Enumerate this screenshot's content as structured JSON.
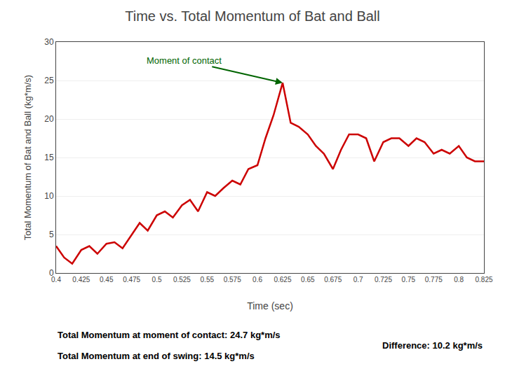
{
  "chart_data": {
    "type": "line",
    "title": "Time vs. Total Momentum of Bat and Ball",
    "xlabel": "Time (sec)",
    "ylabel": "Total Momentum of Bat and Ball (kg*m/s)",
    "x": [
      0.4,
      0.408,
      0.416,
      0.425,
      0.433,
      0.441,
      0.45,
      0.458,
      0.466,
      0.475,
      0.483,
      0.491,
      0.5,
      0.508,
      0.516,
      0.525,
      0.533,
      0.541,
      0.55,
      0.558,
      0.566,
      0.575,
      0.583,
      0.591,
      0.6,
      0.608,
      0.616,
      0.625,
      0.633,
      0.641,
      0.65,
      0.658,
      0.666,
      0.675,
      0.683,
      0.691,
      0.7,
      0.708,
      0.716,
      0.725,
      0.733,
      0.741,
      0.75,
      0.758,
      0.766,
      0.775,
      0.783,
      0.791,
      0.8,
      0.808,
      0.816,
      0.825
    ],
    "values": [
      3.5,
      2.0,
      1.2,
      3.0,
      3.5,
      2.5,
      3.8,
      4.0,
      3.2,
      5.0,
      6.5,
      5.5,
      7.5,
      8.0,
      7.2,
      8.8,
      9.5,
      8.0,
      10.5,
      10.0,
      11.0,
      12.0,
      11.5,
      13.5,
      14.0,
      17.5,
      20.5,
      24.7,
      19.5,
      19.0,
      18.0,
      16.5,
      15.5,
      13.5,
      16.0,
      18.0,
      18.0,
      17.5,
      14.5,
      17.0,
      17.5,
      17.5,
      16.5,
      17.5,
      17.0,
      15.5,
      16.0,
      15.5,
      16.5,
      15.0,
      14.5,
      14.5
    ],
    "color": "#CC0000",
    "xlim": [
      0.4,
      0.825
    ],
    "ylim": [
      0,
      30
    ],
    "xticks": [
      0.4,
      0.425,
      0.45,
      0.475,
      0.5,
      0.525,
      0.55,
      0.575,
      0.6,
      0.625,
      0.65,
      0.675,
      0.7,
      0.725,
      0.75,
      0.775,
      0.8,
      0.825
    ],
    "yticks": [
      0,
      5,
      10,
      15,
      20,
      25,
      30
    ],
    "grid": "y",
    "annotations": [
      {
        "text": "Moment of contact",
        "x": 0.625,
        "y": 24.7,
        "color": "#006400"
      }
    ],
    "footer": [
      "Total Momentum at moment of contact: 24.7 kg*m/s",
      "Total Momentum at end of swing: 14.5 kg*m/s",
      "Difference: 10.2 kg*m/s"
    ]
  }
}
